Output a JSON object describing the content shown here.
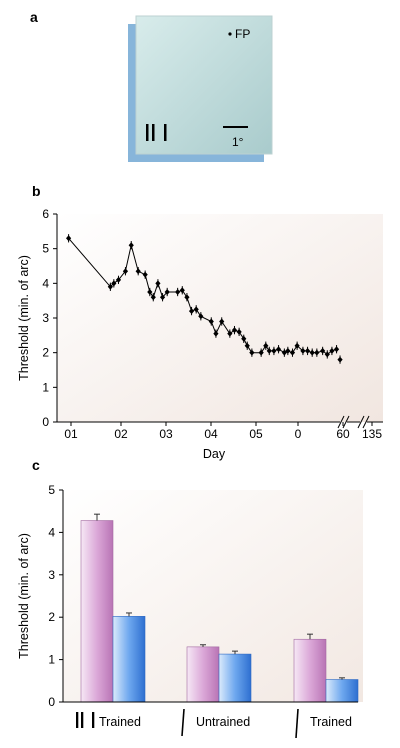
{
  "panels": {
    "a": "a",
    "b": "b",
    "c": "c"
  },
  "stimulus": {
    "fixation_label": "FP",
    "scale_label": "1°"
  },
  "chart_data": [
    {
      "type": "line",
      "panel": "b",
      "xlabel": "Day",
      "ylabel": "Threshold (min. of arc)",
      "ylim": [
        0,
        6
      ],
      "yticks": [
        "0",
        "1",
        "2",
        "3",
        "4",
        "5",
        "6"
      ],
      "xtick_labels": [
        "01",
        "02",
        "03",
        "04",
        "05",
        "0",
        "60",
        "135"
      ],
      "grid": false,
      "series": [
        {
          "x": [
            1,
            4.6,
            4.9,
            5.3,
            5.9,
            6.4,
            7.0,
            7.6,
            8.0,
            8.3,
            8.7,
            9.1,
            9.5,
            10.4,
            10.8,
            11.2,
            11.6,
            12.0,
            12.4,
            13.3,
            13.7,
            14.2,
            14.9,
            15.3,
            15.7,
            16.1,
            16.4,
            16.8,
            17.6,
            18.0,
            18.3,
            18.7,
            19.1,
            19.6,
            19.9,
            20.3,
            20.7,
            21.2,
            21.6,
            22.0,
            22.4,
            22.9,
            23.3,
            23.7,
            24.1,
            24.4
          ],
          "y": [
            5.3,
            3.9,
            4.0,
            4.1,
            4.35,
            5.1,
            4.35,
            4.25,
            3.75,
            3.6,
            4.0,
            3.6,
            3.75,
            3.75,
            3.8,
            3.6,
            3.2,
            3.25,
            3.05,
            2.9,
            2.55,
            2.9,
            2.55,
            2.65,
            2.6,
            2.4,
            2.2,
            2.0,
            2.0,
            2.2,
            2.05,
            2.05,
            2.1,
            2.0,
            2.05,
            2.0,
            2.2,
            2.05,
            2.05,
            2.0,
            2.0,
            2.05,
            1.95,
            2.05,
            2.1,
            1.8
          ],
          "error": 0.12
        }
      ]
    },
    {
      "type": "bar",
      "panel": "c",
      "ylabel": "Threshold (min. of arc)",
      "ylim": [
        0,
        5
      ],
      "yticks": [
        "0",
        "1",
        "2",
        "3",
        "4",
        "5"
      ],
      "categories": [
        "Trained",
        "Untrained",
        "Trained"
      ],
      "series": [
        {
          "values": [
            4.28,
            1.3,
            1.48
          ],
          "errors": [
            0.15,
            0.05,
            0.12
          ],
          "color": "#d9a6d6"
        },
        {
          "values": [
            2.02,
            1.13,
            0.53
          ],
          "errors": [
            0.08,
            0.07,
            0.04
          ],
          "color": "#5d9be8"
        }
      ]
    }
  ]
}
